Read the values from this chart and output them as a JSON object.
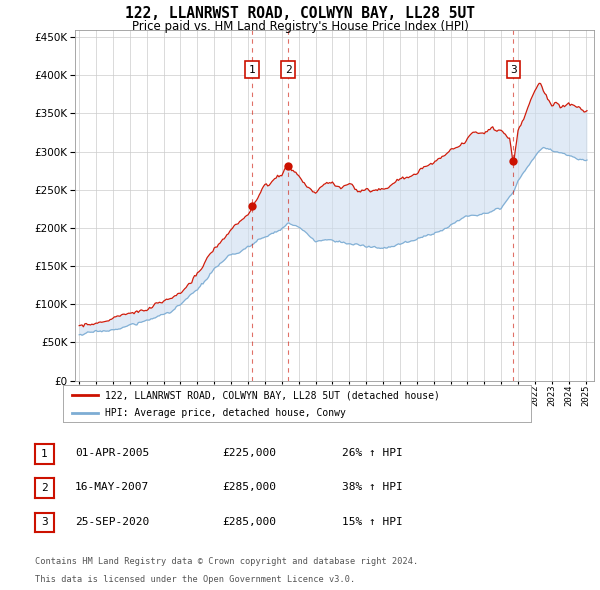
{
  "title": "122, LLANRWST ROAD, COLWYN BAY, LL28 5UT",
  "subtitle": "Price paid vs. HM Land Registry's House Price Index (HPI)",
  "legend_line1": "122, LLANRWST ROAD, COLWYN BAY, LL28 5UT (detached house)",
  "legend_line2": "HPI: Average price, detached house, Conwy",
  "footer1": "Contains HM Land Registry data © Crown copyright and database right 2024.",
  "footer2": "This data is licensed under the Open Government Licence v3.0.",
  "transactions": [
    {
      "num": 1,
      "date": "01-APR-2005",
      "price": "£225,000",
      "change": "26% ↑ HPI",
      "year": 2005.25,
      "value": 225000
    },
    {
      "num": 2,
      "date": "16-MAY-2007",
      "price": "£285,000",
      "change": "38% ↑ HPI",
      "year": 2007.375,
      "value": 285000
    },
    {
      "num": 3,
      "date": "25-SEP-2020",
      "price": "£285,000",
      "change": "15% ↑ HPI",
      "year": 2020.73,
      "value": 285000
    }
  ],
  "hpi_color": "#7dadd4",
  "sale_color": "#cc1100",
  "shade_color": "#ccddf0",
  "bg_color": "#ffffff",
  "grid_color": "#cccccc",
  "ylim": [
    0,
    460000
  ],
  "xlim_start": 1994.75,
  "xlim_end": 2025.5
}
